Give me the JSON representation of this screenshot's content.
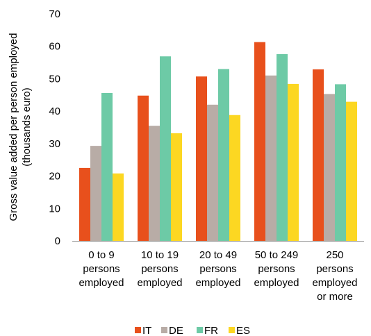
{
  "chart_data": {
    "type": "bar",
    "categories": [
      [
        "0 to 9",
        "persons",
        "employed"
      ],
      [
        "10 to 19",
        "persons",
        "employed"
      ],
      [
        "20 to 49",
        "persons",
        "employed"
      ],
      [
        "50 to 249",
        "persons",
        "employed"
      ],
      [
        "250",
        "persons",
        "employed",
        "or more"
      ]
    ],
    "series": [
      {
        "name": "IT",
        "color": "#e8501c",
        "values": [
          22.5,
          44.8,
          50.7,
          61.3,
          52.9
        ]
      },
      {
        "name": "DE",
        "color": "#b8aca6",
        "values": [
          29.3,
          35.5,
          42.0,
          51.0,
          45.3
        ]
      },
      {
        "name": "FR",
        "color": "#6dcaa6",
        "values": [
          45.6,
          56.9,
          53.0,
          57.6,
          48.3
        ]
      },
      {
        "name": "ES",
        "color": "#fcd722",
        "values": [
          20.8,
          33.2,
          38.8,
          48.4,
          42.9
        ]
      }
    ],
    "ylabel": [
      "Gross value added per person employed",
      "(thousands euro)"
    ],
    "ylim": [
      0,
      70
    ],
    "yticks": [
      0,
      10,
      20,
      30,
      40,
      50,
      60,
      70
    ],
    "grid": false,
    "legend_position": "bottom"
  }
}
